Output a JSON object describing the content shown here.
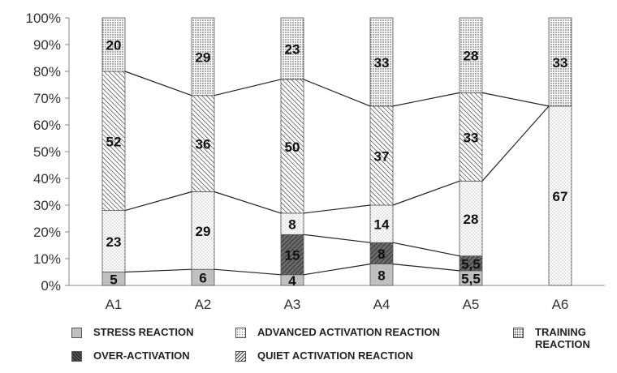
{
  "chart_data": {
    "type": "bar",
    "stacked": true,
    "percent_scale": true,
    "ylim": [
      0,
      100
    ],
    "yticks": [
      "0%",
      "10%",
      "20%",
      "30%",
      "40%",
      "50%",
      "60%",
      "70%",
      "80%",
      "90%",
      "100%"
    ],
    "categories": [
      "A1",
      "A2",
      "A3",
      "A4",
      "A5",
      "A6"
    ],
    "series": [
      {
        "name": "STRESS REACTION",
        "key": "stress",
        "values": [
          5,
          6,
          4,
          8,
          5.5,
          0
        ],
        "labels": [
          "5",
          "6",
          "4",
          "8",
          "5,5",
          ""
        ]
      },
      {
        "name": "OVER-ACTIVATION",
        "key": "over",
        "values": [
          0,
          0,
          15,
          8,
          5.5,
          0
        ],
        "labels": [
          "",
          "",
          "15",
          "8",
          "5,5",
          ""
        ]
      },
      {
        "name": "ADVANCED ACTIVATION REACTION",
        "key": "adv",
        "values": [
          23,
          29,
          8,
          14,
          28,
          67
        ],
        "labels": [
          "23",
          "29",
          "8",
          "14",
          "28",
          "67"
        ]
      },
      {
        "name": "QUIET ACTIVATION REACTION",
        "key": "quiet",
        "values": [
          52,
          36,
          50,
          37,
          33,
          0
        ],
        "labels": [
          "52",
          "36",
          "50",
          "37",
          "33",
          ""
        ]
      },
      {
        "name": "TRAINING REACTION",
        "key": "train",
        "values": [
          20,
          29,
          23,
          33,
          28,
          33
        ],
        "labels": [
          "20",
          "29",
          "23",
          "33",
          "28",
          "33"
        ]
      }
    ],
    "grid": false,
    "legend_position": "bottom",
    "connector_lines": true
  },
  "legend": {
    "stress": "STRESS REACTION",
    "adv": "ADVANCED ACTIVATION REACTION",
    "train": "TRAINING REACTION",
    "over": "OVER-ACTIVATION",
    "quiet": "QUIET ACTIVATION REACTION"
  }
}
